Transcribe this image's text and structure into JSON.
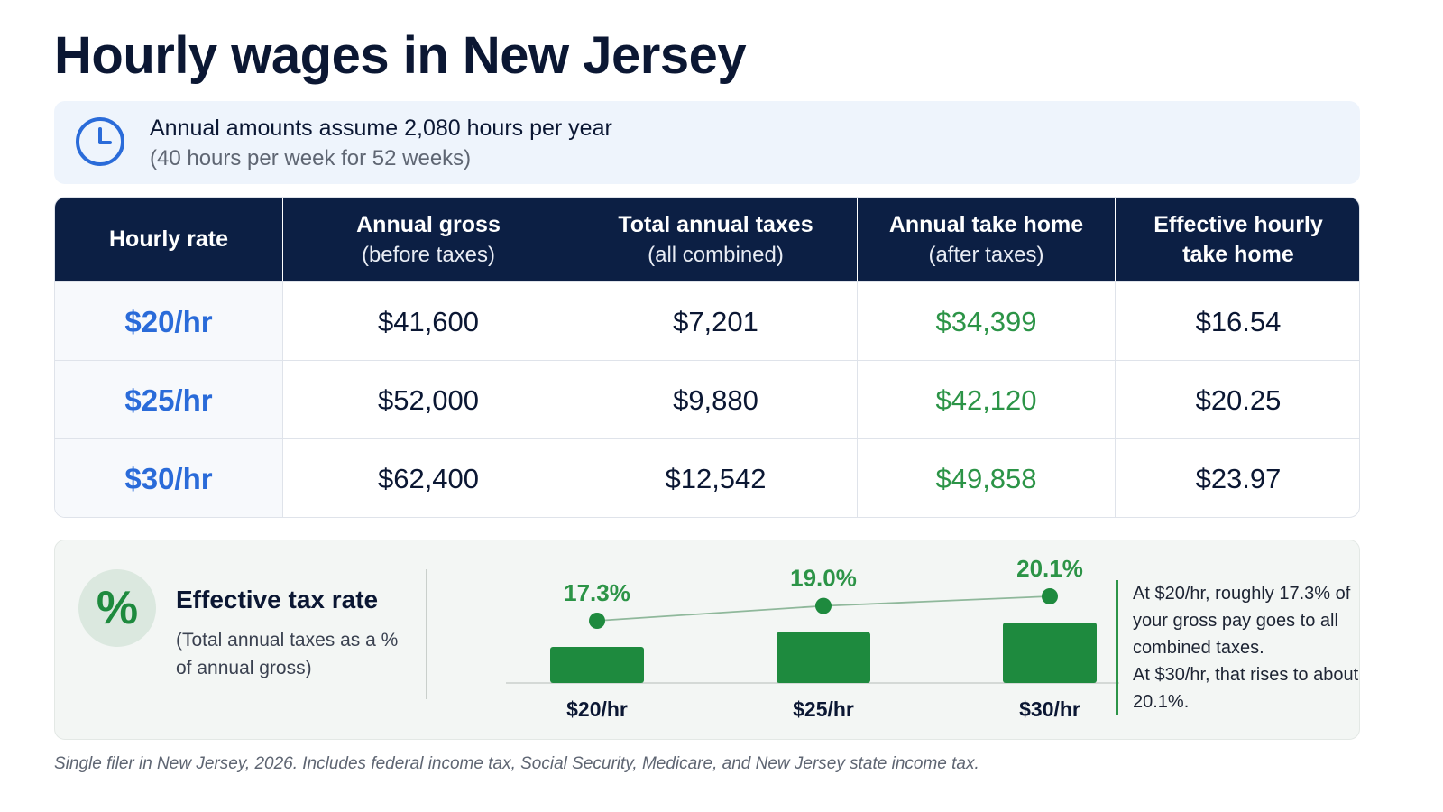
{
  "title": "Hourly wages in New Jersey",
  "note": {
    "icon": "clock-icon",
    "main": "Annual amounts assume 2,080 hours per year",
    "sub": "(40 hours per week for 52 weeks)"
  },
  "table": {
    "headers": [
      {
        "line1": "Hourly rate",
        "line2": ""
      },
      {
        "line1": "Annual gross",
        "line2": "(before taxes)"
      },
      {
        "line1": "Total annual taxes",
        "line2": "(all combined)"
      },
      {
        "line1": "Annual take home",
        "line2": "(after taxes)"
      },
      {
        "line1": "Effective hourly",
        "line2": "take home"
      }
    ],
    "rows": [
      {
        "rate": "$20/hr",
        "gross": "$41,600",
        "taxes": "$7,201",
        "take_home": "$34,399",
        "hourly": "$16.54"
      },
      {
        "rate": "$25/hr",
        "gross": "$52,000",
        "taxes": "$9,880",
        "take_home": "$42,120",
        "hourly": "$20.25"
      },
      {
        "rate": "$30/hr",
        "gross": "$62,400",
        "taxes": "$12,542",
        "take_home": "$49,858",
        "hourly": "$23.97"
      }
    ]
  },
  "rate_section": {
    "icon": "percent-icon",
    "icon_text": "%",
    "title": "Effective tax rate",
    "subtitle": "(Total annual taxes as a % of annual gross)",
    "side_note_1": "At $20/hr, roughly 17.3% of your gross pay goes to all combined taxes.",
    "side_note_2": "At $30/hr, that rises to about 20.1%."
  },
  "chart_data": {
    "type": "bar",
    "categories": [
      "$20/hr",
      "$25/hr",
      "$30/hr"
    ],
    "values": [
      17.3,
      19.0,
      20.1
    ],
    "labels": [
      "17.3%",
      "19.0%",
      "20.1%"
    ],
    "overlay": "line",
    "title": "",
    "xlabel": "",
    "ylabel": "",
    "grid": false
  },
  "footnote": "Single filer in New Jersey, 2026. Includes federal income tax, Social Security, Medicare, and New Jersey state income tax.",
  "colors": {
    "navy": "#0c1f44",
    "blue_rate": "#2a6bd9",
    "green": "#2c9447",
    "bar_green": "#1e8a3e"
  }
}
